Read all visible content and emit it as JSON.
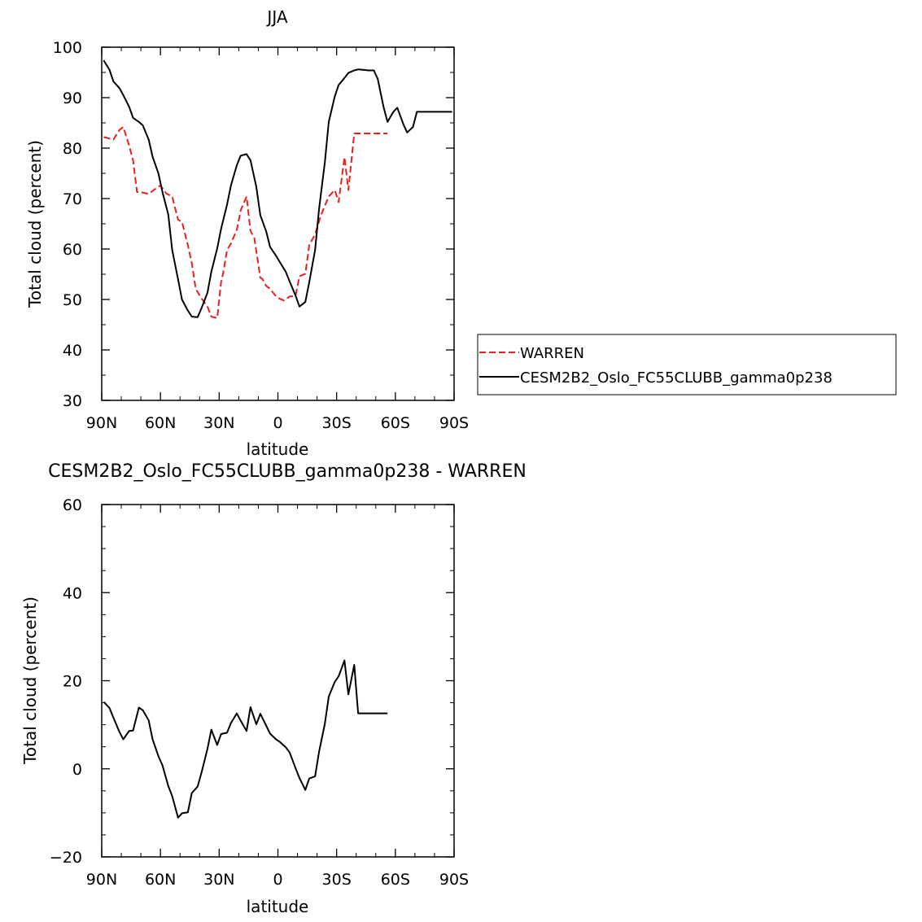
{
  "chart_data": [
    {
      "type": "line",
      "title": "JJA",
      "xlabel": "latitude",
      "ylabel": "Total cloud (percent)",
      "xlim": [
        90,
        -90
      ],
      "ylim": [
        30,
        100
      ],
      "x_ticks": [
        {
          "value": 90,
          "label": "90N"
        },
        {
          "value": 60,
          "label": "60N"
        },
        {
          "value": 30,
          "label": "30N"
        },
        {
          "value": 0,
          "label": "0"
        },
        {
          "value": -30,
          "label": "30S"
        },
        {
          "value": -60,
          "label": "60S"
        },
        {
          "value": -90,
          "label": "90S"
        }
      ],
      "y_ticks": [
        30,
        40,
        50,
        60,
        70,
        80,
        90,
        100
      ],
      "legend_position": "right",
      "series": [
        {
          "name": "WARREN",
          "color": "#e8201e",
          "dash": true,
          "x": [
            89,
            84,
            81,
            79,
            76,
            74,
            72,
            69,
            66,
            63,
            60,
            57,
            54,
            51,
            49,
            46,
            44,
            42,
            39,
            36,
            34,
            31,
            29,
            28,
            26,
            24,
            21,
            19,
            16,
            14,
            12,
            9,
            8,
            6,
            4,
            2,
            0,
            -3,
            -6,
            -9,
            -11,
            -14,
            -16,
            -19,
            -22,
            -24,
            -26,
            -29,
            -31,
            -34,
            -36,
            -39,
            -41,
            -44,
            -46,
            -48,
            -49,
            -51,
            -53,
            -56
          ],
          "y": [
            82.2,
            81.7,
            83.6,
            84.2,
            80.5,
            77.6,
            71.3,
            71.2,
            70.9,
            71.8,
            72.6,
            71.0,
            70.4,
            65.8,
            65.4,
            60.8,
            57.2,
            52.1,
            50.2,
            48.6,
            46.6,
            46.3,
            53.5,
            55.1,
            59.8,
            61.1,
            63.8,
            67.7,
            70.4,
            63.6,
            62.1,
            54.3,
            54.1,
            52.7,
            52.1,
            51.1,
            50.3,
            49.8,
            50.6,
            50.7,
            54.6,
            55.1,
            60.8,
            62.9,
            66.7,
            68.6,
            70.4,
            71.7,
            69.3,
            78.2,
            71.7,
            82.9,
            82.9,
            82.9,
            82.9,
            82.9,
            82.9,
            82.9,
            82.9,
            82.9
          ]
        },
        {
          "name": "CESM2B2_Oslo_FC55CLUBB_gamma0p238",
          "color": "#000000",
          "dash": false,
          "x": [
            89,
            86,
            84,
            81,
            79,
            76,
            74,
            71,
            69,
            66,
            64,
            61,
            59,
            56,
            54,
            51,
            49,
            46,
            44,
            41,
            39,
            36,
            34,
            31,
            29,
            26,
            24,
            21,
            19,
            16,
            14,
            11,
            9,
            6,
            4,
            1,
            -1,
            -4,
            -6,
            -9,
            -11,
            -14,
            -16,
            -19,
            -21,
            -24,
            -26,
            -29,
            -31,
            -34,
            -36,
            -39,
            -41,
            -44,
            -46,
            -49,
            -51,
            -54,
            -56,
            -59,
            -61,
            -64,
            -66,
            -69,
            -71,
            -74,
            -76,
            -79,
            -81,
            -84,
            -86,
            -89
          ],
          "y": [
            97.4,
            95.5,
            93.2,
            91.9,
            90.5,
            88.2,
            86.0,
            85.2,
            84.5,
            81.7,
            78.3,
            74.9,
            71.3,
            66.8,
            59.8,
            54.0,
            50.0,
            47.8,
            46.6,
            46.5,
            48.3,
            51.3,
            55.5,
            60.1,
            64.0,
            68.8,
            72.6,
            76.6,
            78.5,
            78.8,
            77.6,
            72.3,
            66.7,
            63.5,
            60.4,
            58.7,
            57.4,
            55.5,
            53.6,
            50.8,
            48.6,
            49.5,
            53.4,
            59.8,
            67.8,
            77.2,
            85.2,
            90.2,
            92.5,
            93.9,
            94.9,
            95.4,
            95.6,
            95.5,
            95.4,
            95.4,
            93.7,
            88.1,
            85.2,
            87.2,
            88.0,
            84.8,
            83.1,
            84.2,
            87.2,
            87.2,
            87.2,
            87.2,
            87.2,
            87.2,
            87.2,
            87.2
          ]
        }
      ]
    },
    {
      "type": "line",
      "title": "CESM2B2_Oslo_FC55CLUBB_gamma0p238 - WARREN",
      "xlabel": "latitude",
      "ylabel": "Total cloud (percent)",
      "xlim": [
        90,
        -90
      ],
      "ylim": [
        -20,
        60
      ],
      "x_ticks": [
        {
          "value": 90,
          "label": "90N"
        },
        {
          "value": 60,
          "label": "60N"
        },
        {
          "value": 30,
          "label": "30N"
        },
        {
          "value": 0,
          "label": "0"
        },
        {
          "value": -30,
          "label": "30S"
        },
        {
          "value": -60,
          "label": "60S"
        },
        {
          "value": -90,
          "label": "90S"
        }
      ],
      "y_ticks": [
        -20,
        0,
        20,
        40,
        60
      ],
      "series": [
        {
          "name": "",
          "color": "#000000",
          "dash": false,
          "x": [
            89,
            86,
            84,
            81,
            79,
            76,
            74,
            71,
            69,
            66,
            64,
            61,
            59,
            56,
            54,
            51,
            49,
            46,
            44,
            41,
            39,
            36,
            34,
            31,
            29,
            26,
            24,
            21,
            19,
            16,
            14,
            11,
            9,
            6,
            4,
            1,
            -1,
            -4,
            -6,
            -9,
            -11,
            -14,
            -16,
            -19,
            -21,
            -24,
            -26,
            -29,
            -31,
            -34,
            -36,
            -39,
            -41,
            -44,
            -46,
            -49,
            -51,
            -54,
            -56
          ],
          "y": [
            15.2,
            13.8,
            11.6,
            8.4,
            6.7,
            8.6,
            8.7,
            13.9,
            13.3,
            11.0,
            6.7,
            2.8,
            0.8,
            -3.9,
            -6.2,
            -11.1,
            -10.1,
            -9.9,
            -5.5,
            -4.0,
            -0.8,
            4.5,
            8.9,
            5.4,
            7.9,
            8.2,
            10.4,
            12.6,
            10.9,
            8.6,
            14.0,
            10.1,
            12.5,
            9.8,
            8.0,
            6.7,
            6.1,
            4.9,
            3.7,
            0.2,
            -2.1,
            -4.8,
            -2.2,
            -1.7,
            3.8,
            10.2,
            16.4,
            19.7,
            21.0,
            24.6,
            16.9,
            23.6,
            12.6,
            12.6,
            12.6,
            12.6,
            12.6,
            12.6,
            12.6
          ]
        }
      ]
    }
  ]
}
